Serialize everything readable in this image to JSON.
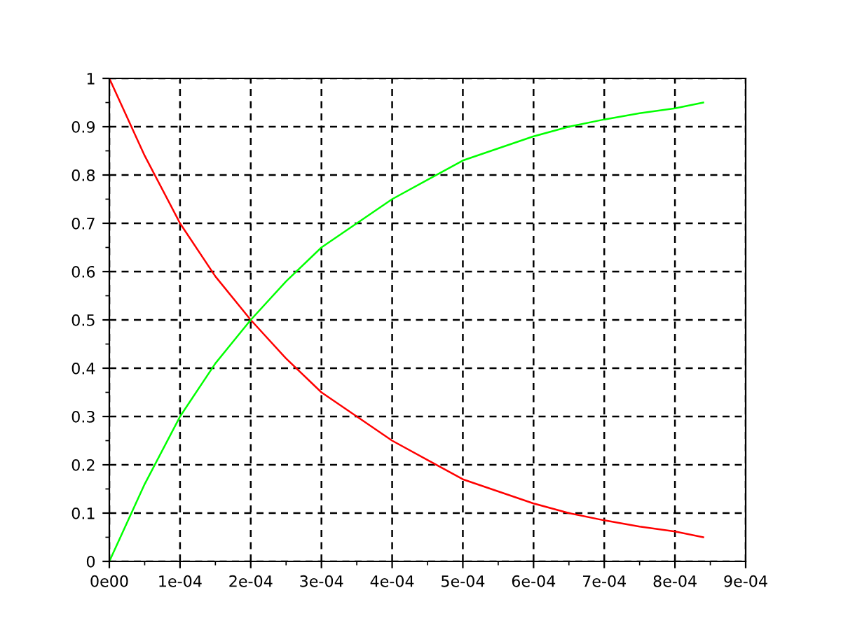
{
  "chart_data": {
    "type": "line",
    "x": [
      0,
      5e-05,
      0.0001,
      0.00015,
      0.0002,
      0.00025,
      0.0003,
      0.00035,
      0.0004,
      0.00045,
      0.0005,
      0.00055,
      0.0006,
      0.00065,
      0.0007,
      0.00075,
      0.0008,
      0.00084
    ],
    "series": [
      {
        "color": "#ff0000",
        "values": [
          1.0,
          0.84,
          0.7,
          0.59,
          0.5,
          0.42,
          0.35,
          0.3,
          0.25,
          0.21,
          0.17,
          0.145,
          0.12,
          0.1,
          0.085,
          0.072,
          0.062,
          0.05
        ]
      },
      {
        "color": "#00ff00",
        "values": [
          0.0,
          0.16,
          0.3,
          0.41,
          0.5,
          0.58,
          0.65,
          0.7,
          0.75,
          0.79,
          0.83,
          0.855,
          0.88,
          0.9,
          0.915,
          0.928,
          0.938,
          0.95
        ]
      }
    ],
    "xlim": [
      0,
      0.0009
    ],
    "xticks": [
      {
        "value": 0,
        "label": "0e00"
      },
      {
        "value": 0.0001,
        "label": "1e-04"
      },
      {
        "value": 0.0002,
        "label": "2e-04"
      },
      {
        "value": 0.0003,
        "label": "3e-04"
      },
      {
        "value": 0.0004,
        "label": "4e-04"
      },
      {
        "value": 0.0005,
        "label": "5e-04"
      },
      {
        "value": 0.0006,
        "label": "6e-04"
      },
      {
        "value": 0.0007,
        "label": "7e-04"
      },
      {
        "value": 0.0008,
        "label": "8e-04"
      },
      {
        "value": 0.0009,
        "label": "9e-04"
      }
    ],
    "ylim": [
      0,
      1
    ],
    "yticks": [
      0,
      0.1,
      0.2,
      0.3,
      0.4,
      0.5,
      0.6,
      0.7,
      0.8,
      0.9,
      1
    ],
    "grid": true,
    "line_style": "solid",
    "marker": "none"
  }
}
